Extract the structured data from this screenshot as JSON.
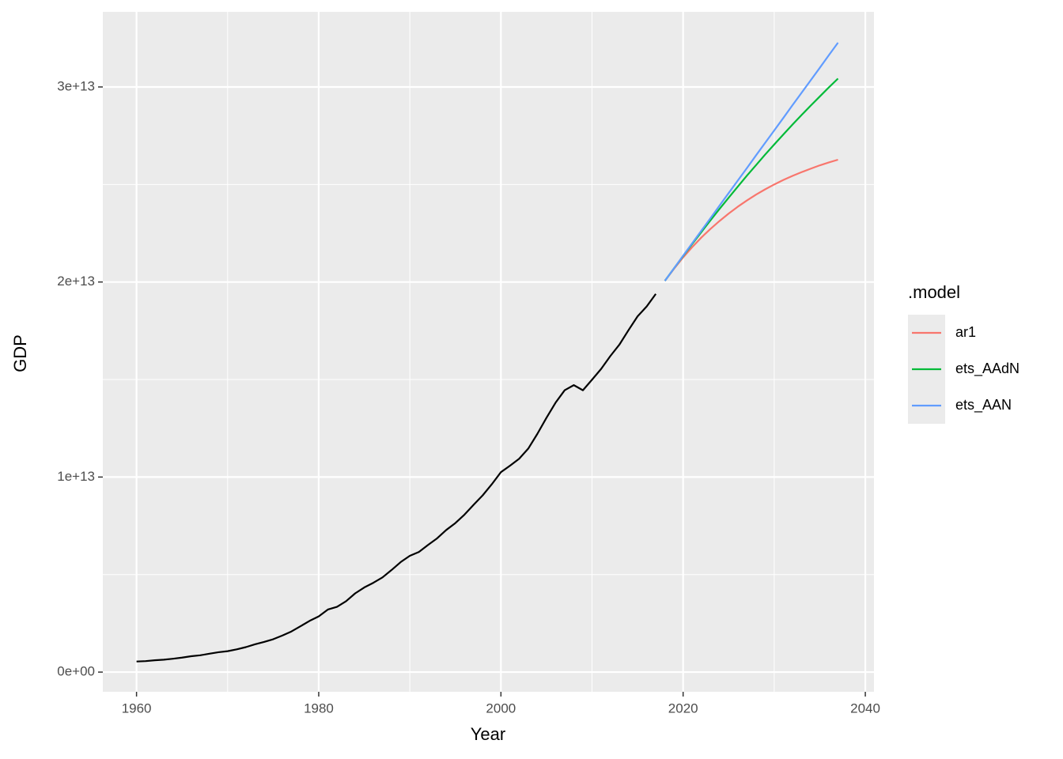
{
  "chart_data": {
    "type": "line",
    "xlabel": "Year",
    "ylabel": "GDP",
    "legend_title": ".model",
    "legend": "right",
    "xlim": [
      1956.3,
      2040.95
    ],
    "xticks": [
      1960,
      1980,
      2000,
      2020,
      2040
    ],
    "xminor": [
      1970,
      1990,
      2010,
      2030
    ],
    "ylim": [
      -1010000000000.0,
      33850000000000.0
    ],
    "yticks": [
      {
        "value": 0,
        "label": "0e+00"
      },
      {
        "value": 10000000000000.0,
        "label": "1e+13"
      },
      {
        "value": 20000000000000.0,
        "label": "2e+13"
      },
      {
        "value": 30000000000000.0,
        "label": "3e+13"
      }
    ],
    "yminor": [
      5000000000000.0,
      15000000000000.0,
      25000000000000.0
    ],
    "grid": true,
    "series": [
      {
        "color": "#000000",
        "x": [
          1960,
          1961,
          1962,
          1963,
          1964,
          1965,
          1966,
          1967,
          1968,
          1969,
          1970,
          1971,
          1972,
          1973,
          1974,
          1975,
          1976,
          1977,
          1978,
          1979,
          1980,
          1981,
          1982,
          1983,
          1984,
          1985,
          1986,
          1987,
          1988,
          1989,
          1990,
          1991,
          1992,
          1993,
          1994,
          1995,
          1996,
          1997,
          1998,
          1999,
          2000,
          2001,
          2002,
          2003,
          2004,
          2005,
          2006,
          2007,
          2008,
          2009,
          2010,
          2011,
          2012,
          2013,
          2014,
          2015,
          2016,
          2017
        ],
        "values": [
          543000000000.0,
          563000000000.0,
          605000000000.0,
          638000000000.0,
          686000000000.0,
          744000000000.0,
          815000000000.0,
          862000000000.0,
          943000000000.0,
          1019000000000.0,
          1073000000000.0,
          1165000000000.0,
          1280000000000.0,
          1425000000000.0,
          1545000000000.0,
          1684000000000.0,
          1873000000000.0,
          2082000000000.0,
          2352000000000.0,
          2627000000000.0,
          2857000000000.0,
          3207000000000.0,
          3343000000000.0,
          3634000000000.0,
          4037000000000.0,
          4339000000000.0,
          4580000000000.0,
          4855000000000.0,
          5236000000000.0,
          5642000000000.0,
          5963000000000.0,
          6158000000000.0,
          6520000000000.0,
          6859000000000.0,
          7287000000000.0,
          7640000000000.0,
          8073000000000.0,
          8578000000000.0,
          9063000000000.0,
          9631000000000.0,
          10252000000000.0,
          10582000000000.0,
          10936000000000.0,
          11458000000000.0,
          12214000000000.0,
          13037000000000.0,
          13815000000000.0,
          14452000000000.0,
          14713000000000.0,
          14449000000000.0,
          14992000000000.0,
          15543000000000.0,
          16197000000000.0,
          16785000000000.0,
          17527000000000.0,
          18238000000000.0,
          18745000000000.0,
          19390000000000.0
        ]
      },
      {
        "name": "ar1",
        "color": "#f8766d",
        "x": [
          2018,
          2019,
          2020,
          2021,
          2022,
          2023,
          2024,
          2025,
          2026,
          2027,
          2028,
          2029,
          2030,
          2031,
          2032,
          2033,
          2034,
          2035,
          2036,
          2037
        ],
        "values": [
          20060000000000.0,
          20680000000000.0,
          21260000000000.0,
          21790000000000.0,
          22280000000000.0,
          22720000000000.0,
          23130000000000.0,
          23510000000000.0,
          23860000000000.0,
          24180000000000.0,
          24480000000000.0,
          24750000000000.0,
          25000000000000.0,
          25230000000000.0,
          25440000000000.0,
          25630000000000.0,
          25810000000000.0,
          25980000000000.0,
          26130000000000.0,
          26270000000000.0
        ]
      },
      {
        "name": "ets_AAdN",
        "color": "#00ba38",
        "x": [
          2018,
          2019,
          2020,
          2021,
          2022,
          2023,
          2024,
          2025,
          2026,
          2027,
          2028,
          2029,
          2030,
          2031,
          2032,
          2033,
          2034,
          2035,
          2036,
          2037
        ],
        "values": [
          20060000000000.0,
          20700000000000.0,
          21330000000000.0,
          21950000000000.0,
          22560000000000.0,
          23160000000000.0,
          23750000000000.0,
          24320000000000.0,
          24890000000000.0,
          25450000000000.0,
          25990000000000.0,
          26530000000000.0,
          27050000000000.0,
          27560000000000.0,
          28070000000000.0,
          28560000000000.0,
          29040000000000.0,
          29510000000000.0,
          29980000000000.0,
          30430000000000.0
        ]
      },
      {
        "name": "ets_AAN",
        "color": "#619cff",
        "x": [
          2018,
          2019,
          2020,
          2021,
          2022,
          2023,
          2024,
          2025,
          2026,
          2027,
          2028,
          2029,
          2030,
          2031,
          2032,
          2033,
          2034,
          2035,
          2036,
          2037
        ],
        "values": [
          20060000000000.0,
          20700000000000.0,
          21350000000000.0,
          21990000000000.0,
          22630000000000.0,
          23270000000000.0,
          23920000000000.0,
          24560000000000.0,
          25200000000000.0,
          25840000000000.0,
          26490000000000.0,
          27130000000000.0,
          27770000000000.0,
          28410000000000.0,
          29060000000000.0,
          29700000000000.0,
          30340000000000.0,
          30980000000000.0,
          31630000000000.0,
          32270000000000.0
        ]
      }
    ]
  }
}
